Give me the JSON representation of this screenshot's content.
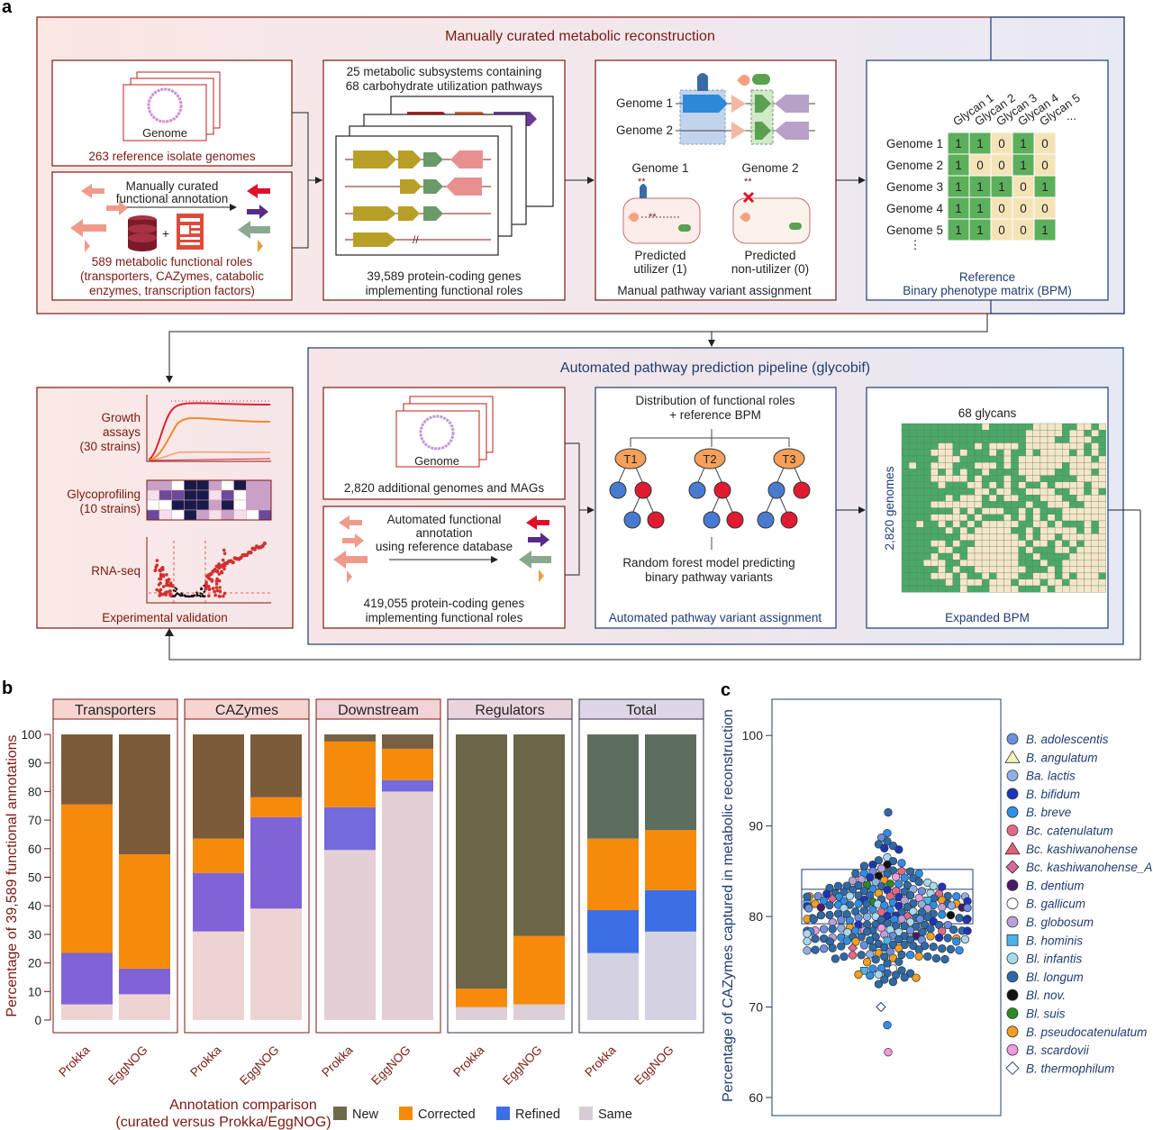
{
  "panel_labels": {
    "a": "a",
    "b": "b",
    "c": "c"
  },
  "panel_a": {
    "top_title": "Manually curated metabolic reconstruction",
    "bottom_title": "Automated pathway prediction pipeline (glycobif)",
    "genome_word": "Genome",
    "ref_genomes": "263 reference isolate genomes",
    "manual_annot": [
      "Manually curated",
      "functional annotation"
    ],
    "roles": [
      "589 metabolic functional roles",
      "(transporters, CAZymes, catabolic",
      "enzymes, transcription factors)"
    ],
    "subsystems": [
      "25 metabolic subsystems containing",
      "68 carbohydrate utilization pathways"
    ],
    "protein_genes": [
      "39,589 protein-coding genes",
      "implementing functional roles"
    ],
    "genome1": "Genome 1",
    "genome2": "Genome 2",
    "predicted_util": [
      "Predicted",
      "utilizer (1)"
    ],
    "predicted_nonutil": [
      "Predicted",
      "non-utilizer (0)"
    ],
    "manual_variant": "Manual pathway variant assignment",
    "glycan_cols": [
      "Glycan 1",
      "Glycan 2",
      "Glycan 3",
      "Glycan 4",
      "Glycan 5",
      "..."
    ],
    "bpm_rows": [
      {
        "name": "Genome 1",
        "vals": [
          1,
          1,
          0,
          1,
          0
        ]
      },
      {
        "name": "Genome 2",
        "vals": [
          1,
          0,
          0,
          1,
          0
        ]
      },
      {
        "name": "Genome 3",
        "vals": [
          1,
          1,
          1,
          0,
          1
        ]
      },
      {
        "name": "Genome 4",
        "vals": [
          1,
          1,
          0,
          0,
          0
        ]
      },
      {
        "name": "Genome 5",
        "vals": [
          1,
          1,
          0,
          0,
          1
        ]
      }
    ],
    "bpm_ellipsis": "⋮",
    "ref_bpm": [
      "Reference",
      "Binary phenotype matrix (BPM)"
    ],
    "growth": [
      "Growth",
      "assays",
      "(30 strains)"
    ],
    "glycoprof": [
      "Glycoprofiling",
      "(10 strains)"
    ],
    "rnaseq": "RNA-seq",
    "exp_val": "Experimental validation",
    "add_genomes": "2,820 additional genomes and MAGs",
    "auto_annot": [
      "Automated functional",
      "annotation",
      "using reference database"
    ],
    "genes_419": [
      "419,055 protein-coding genes",
      "implementing functional roles"
    ],
    "dist_roles": [
      "Distribution of functional roles",
      "+ reference BPM"
    ],
    "trees": [
      "T1",
      "T2",
      "T3"
    ],
    "rf_model": [
      "Random forest model predicting",
      "binary pathway variants"
    ],
    "auto_variant": "Automated pathway variant assignment",
    "glycans68": "68 glycans",
    "genomes2820": "2,820 genomes",
    "expanded_bpm": "Expanded BPM"
  },
  "panel_b": {
    "ylabel": "Percentage of 39,589 functional annotations",
    "xlabel": [
      "Annotation comparison",
      "(curated versus Prokka/EggNOG)"
    ],
    "yticks": [
      "0",
      "10",
      "20",
      "30",
      "40",
      "50",
      "60",
      "70",
      "80",
      "90",
      "100"
    ],
    "legend": [
      {
        "name": "New",
        "color": "#6e6a4b"
      },
      {
        "name": "Corrected",
        "color": "#f58a0b"
      },
      {
        "name": "Refined",
        "color": "#3c6ee6"
      },
      {
        "name": "Same",
        "color": "#d8ccd4"
      }
    ]
  },
  "chart_data": [
    {
      "type": "bar",
      "title": "",
      "stacked": true,
      "ylabel": "Percentage of 39,589 functional annotations",
      "xlabel": "Annotation comparison (curated versus Prokka/EggNOG)",
      "ylim": [
        0,
        100
      ],
      "facets": [
        {
          "name": "Transporters",
          "header_color": "#f6d4d1",
          "refined_color": "#8163d8",
          "new_color": "#7c5b3a",
          "same_color": "#eed3d3",
          "bars": [
            {
              "label": "Prokka",
              "Same": 5.5,
              "Refined": 18,
              "Corrected": 52,
              "New": 24.5
            },
            {
              "label": "EggNOG",
              "Same": 9,
              "Refined": 9,
              "Corrected": 40,
              "New": 42
            }
          ]
        },
        {
          "name": "CAZymes",
          "header_color": "#f6d4d1",
          "refined_color": "#8163d8",
          "new_color": "#7c5b3a",
          "same_color": "#eed3d3",
          "bars": [
            {
              "label": "Prokka",
              "Same": 31,
              "Refined": 20.5,
              "Corrected": 12,
              "New": 36.5
            },
            {
              "label": "EggNOG",
              "Same": 39,
              "Refined": 32,
              "Corrected": 7,
              "New": 22
            }
          ]
        },
        {
          "name": "Downstream",
          "header_color": "#f1d2d6",
          "refined_color": "#7469dd",
          "new_color": "#786045",
          "same_color": "#e4cfd6",
          "bars": [
            {
              "label": "Prokka",
              "Same": 59.5,
              "Refined": 15,
              "Corrected": 23,
              "New": 2.5
            },
            {
              "label": "EggNOG",
              "Same": 80,
              "Refined": 4,
              "Corrected": 11,
              "New": 5
            }
          ]
        },
        {
          "name": "Regulators",
          "header_color": "#ead4dc",
          "refined_color": "#5b6bdd",
          "new_color": "#6b6648",
          "same_color": "#dccfd8",
          "bars": [
            {
              "label": "Prokka",
              "Same": 4.5,
              "Refined": 0,
              "Corrected": 6.5,
              "New": 89
            },
            {
              "label": "EggNOG",
              "Same": 5.5,
              "Refined": 0,
              "Corrected": 24,
              "New": 70.5
            }
          ]
        },
        {
          "name": "Total",
          "header_color": "#dcd6e6",
          "refined_color": "#3c6ee6",
          "new_color": "#5e6e5e",
          "same_color": "#d4d2e0",
          "bars": [
            {
              "label": "Prokka",
              "Same": 23.5,
              "Refined": 15,
              "Corrected": 25,
              "New": 36.5
            },
            {
              "label": "EggNOG",
              "Same": 31,
              "Refined": 14.5,
              "Corrected": 21,
              "New": 33.5
            }
          ]
        }
      ]
    },
    {
      "type": "scatter",
      "title": "",
      "ylabel": "Percentage of CAZymes captured in metabolic reconstruction",
      "ylim": [
        58,
        104
      ],
      "yticks": [
        60,
        70,
        80,
        90,
        100
      ],
      "boxplot": {
        "q1": 79.2,
        "median": 83,
        "q3": 85.2
      },
      "n_points": 263,
      "highlighted_points": [
        {
          "species": "B. thermophilum",
          "y": 70
        },
        {
          "species": "B. scardovii",
          "y": 65
        },
        {
          "species": "Bl. longum",
          "y": 91.5
        }
      ],
      "legend": [
        {
          "name": "B. adolescentis",
          "color": "#6b8fe0",
          "shape": "circle"
        },
        {
          "name": "B. angulatum",
          "color": "#f4f4b8",
          "shape": "triangle"
        },
        {
          "name": "Ba. lactis",
          "color": "#8fb0e6",
          "shape": "circle"
        },
        {
          "name": "B. bifidum",
          "color": "#1e34b8",
          "shape": "circle"
        },
        {
          "name": "B. breve",
          "color": "#2f8ee8",
          "shape": "circle"
        },
        {
          "name": "Bc. catenulatum",
          "color": "#e06a86",
          "shape": "circle"
        },
        {
          "name": "Bc. kashiwanohense",
          "color": "#e0607a",
          "shape": "triangle"
        },
        {
          "name": "Bc. kashiwanohense_A",
          "color": "#d86a9a",
          "shape": "diamond"
        },
        {
          "name": "B. dentium",
          "color": "#4a1a6a",
          "shape": "circle"
        },
        {
          "name": "B. gallicum",
          "color": "#ffffff",
          "shape": "circle"
        },
        {
          "name": "B. globosum",
          "color": "#b9a0d8",
          "shape": "circle"
        },
        {
          "name": "B. hominis",
          "color": "#4ab4ea",
          "shape": "square"
        },
        {
          "name": "Bl. infantis",
          "color": "#a8d8ee",
          "shape": "circle"
        },
        {
          "name": "Bl. longum",
          "color": "#2e6aa8",
          "shape": "circle"
        },
        {
          "name": "Bl. nov.",
          "color": "#111111",
          "shape": "circle"
        },
        {
          "name": "Bl. suis",
          "color": "#2a8a2a",
          "shape": "circle"
        },
        {
          "name": "B. pseudocatenulatum",
          "color": "#f0a020",
          "shape": "circle"
        },
        {
          "name": "B. scardovii",
          "color": "#ee9ae0",
          "shape": "circle"
        },
        {
          "name": "B. thermophilum",
          "color": "#ffffff",
          "shape": "diamond"
        }
      ]
    }
  ]
}
